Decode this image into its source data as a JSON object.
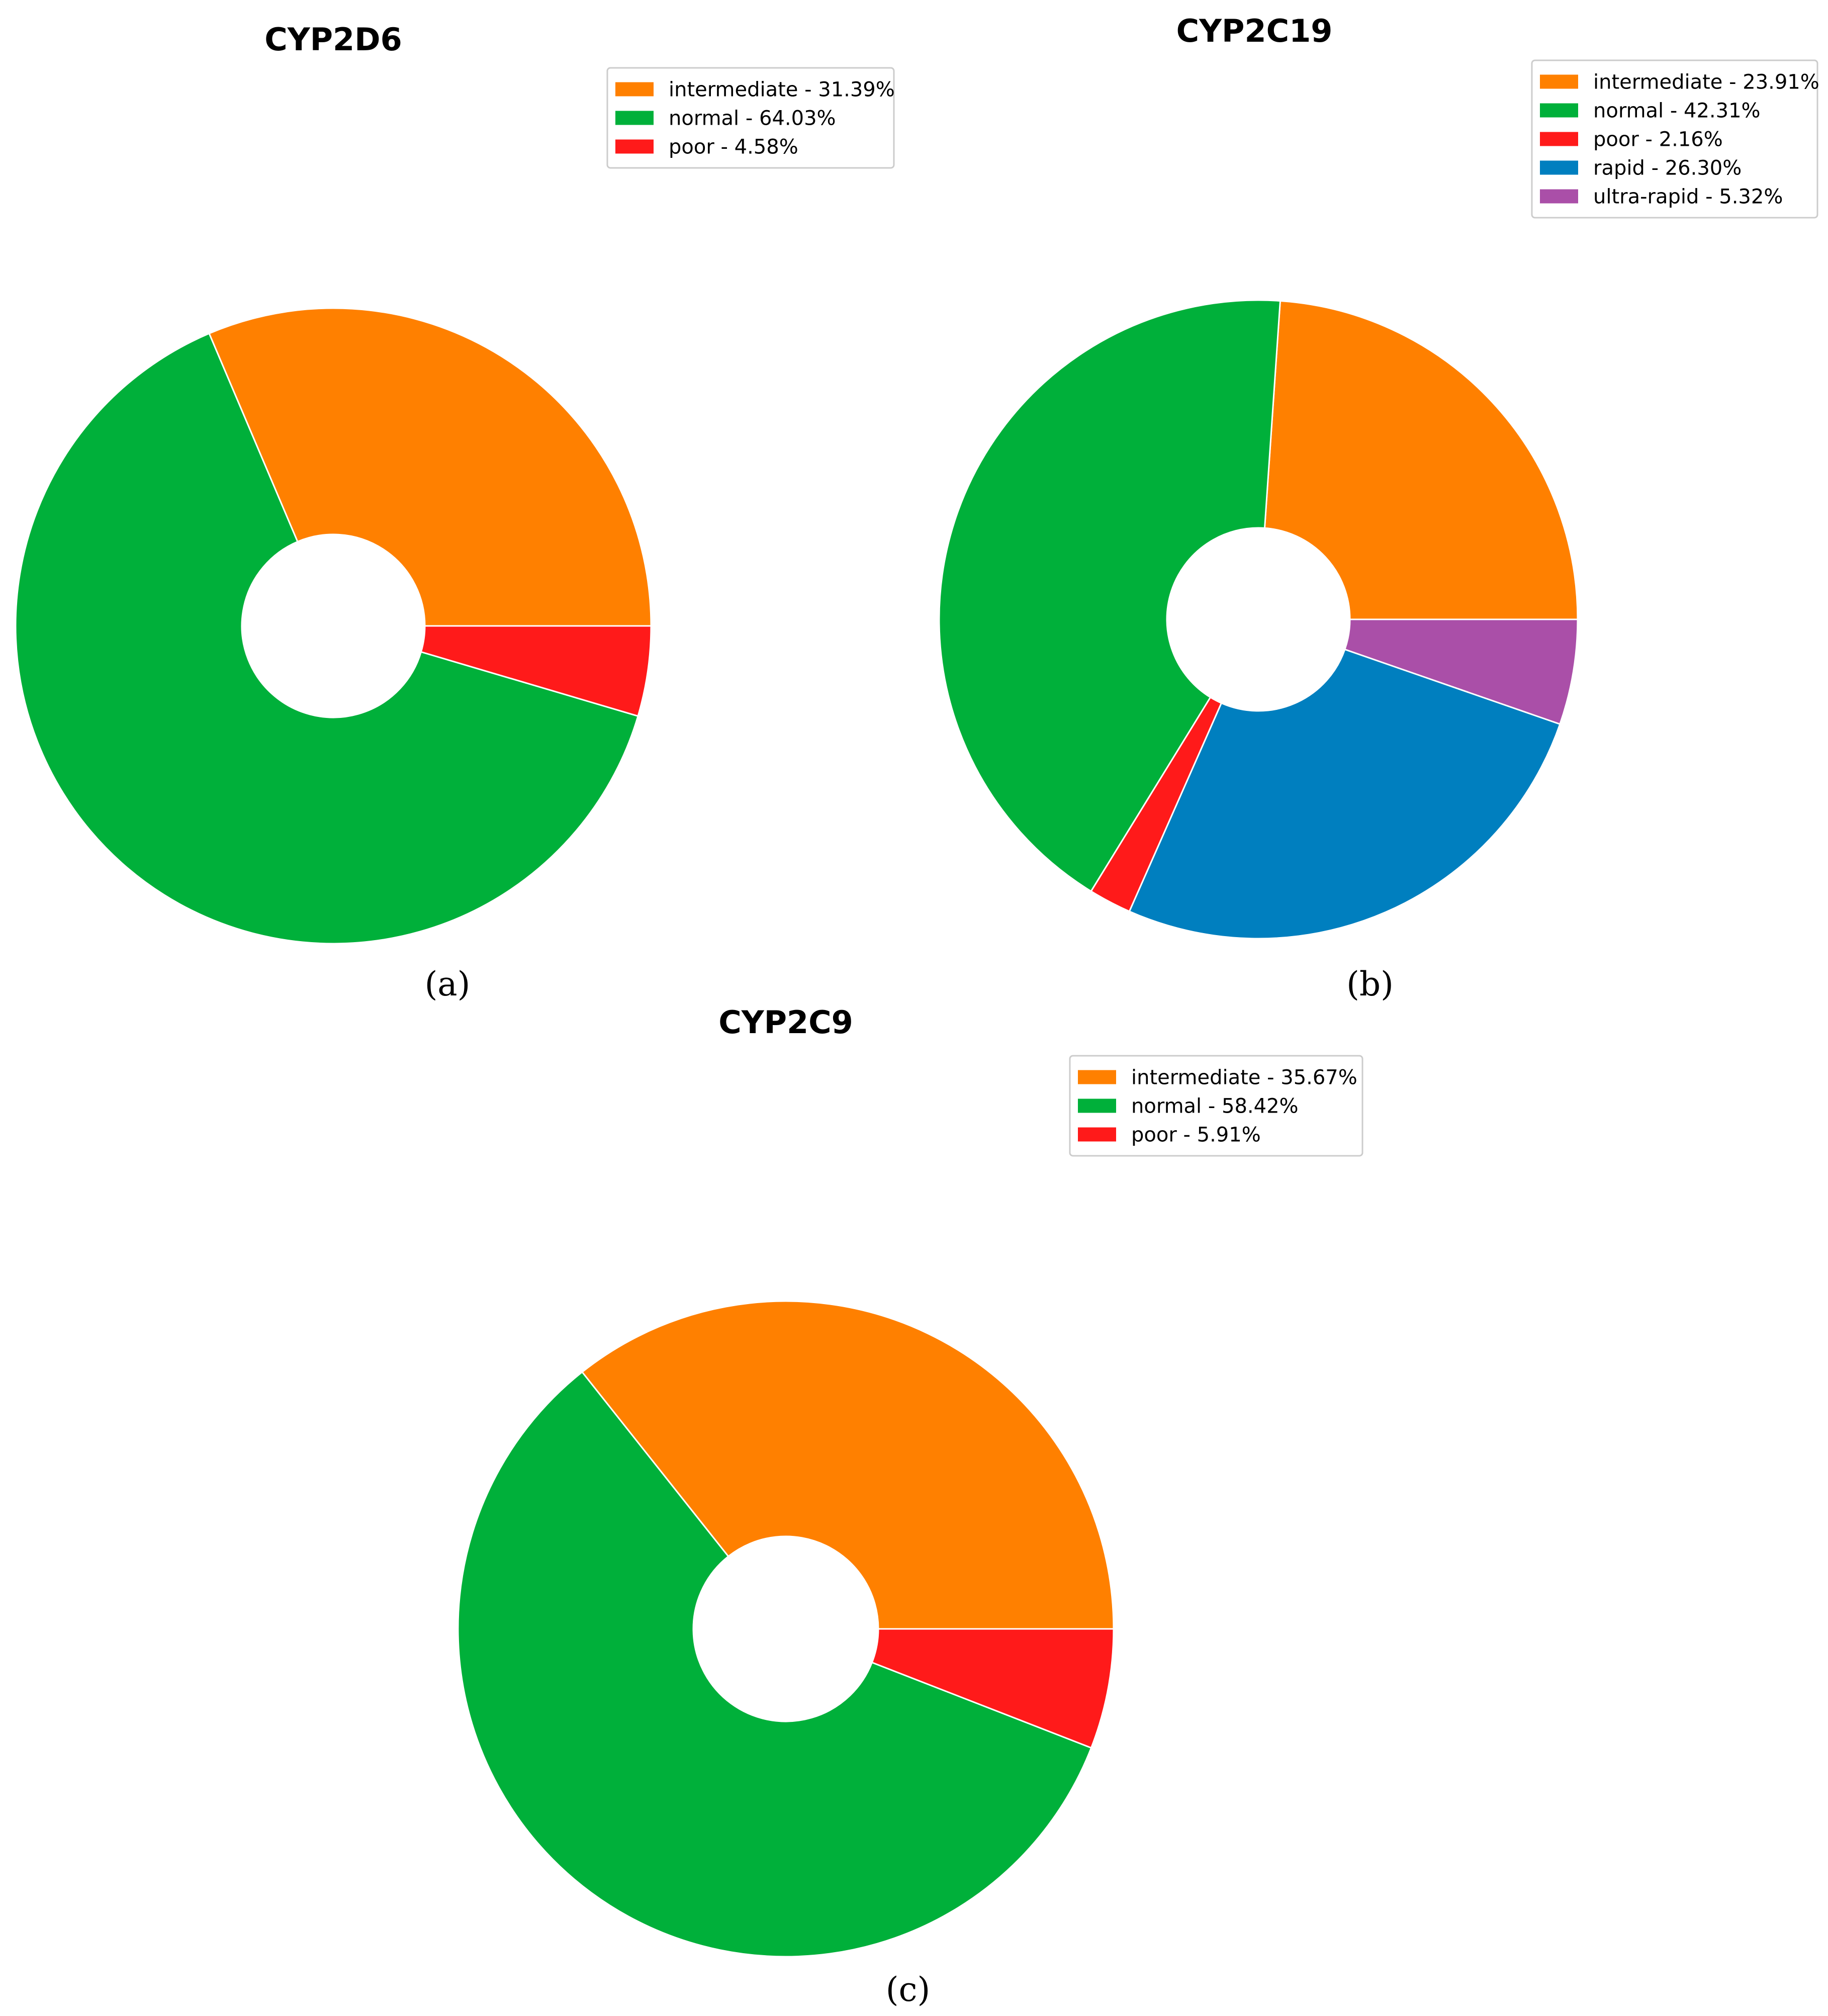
{
  "colors": {
    "intermediate": "#ff8000",
    "normal": "#00b03a",
    "poor": "#ff1a1a",
    "rapid": "#007fbf",
    "ultra-rapid": "#aa4fa8"
  },
  "chart_data": [
    {
      "type": "pie",
      "title": "CYP2D6",
      "panel_label": "(a)",
      "slices": [
        {
          "label": "intermediate",
          "value": 31.39,
          "legend": "intermediate - 31.39%"
        },
        {
          "label": "normal",
          "value": 64.03,
          "legend": "normal - 64.03%"
        },
        {
          "label": "poor",
          "value": 4.58,
          "legend": "poor - 4.58%"
        }
      ]
    },
    {
      "type": "pie",
      "title": "CYP2C19",
      "panel_label": "(b)",
      "slices": [
        {
          "label": "intermediate",
          "value": 23.91,
          "legend": "intermediate - 23.91%"
        },
        {
          "label": "normal",
          "value": 42.31,
          "legend": "normal - 42.31%"
        },
        {
          "label": "poor",
          "value": 2.16,
          "legend": "poor - 2.16%"
        },
        {
          "label": "rapid",
          "value": 26.3,
          "legend": "rapid - 26.30%"
        },
        {
          "label": "ultra-rapid",
          "value": 5.32,
          "legend": "ultra-rapid - 5.32%"
        }
      ]
    },
    {
      "type": "pie",
      "title": "CYP2C9",
      "panel_label": "(c)",
      "slices": [
        {
          "label": "intermediate",
          "value": 35.67,
          "legend": "intermediate - 35.67%"
        },
        {
          "label": "normal",
          "value": 58.42,
          "legend": "normal - 58.42%"
        },
        {
          "label": "poor",
          "value": 5.91,
          "legend": "poor - 5.91%"
        }
      ]
    }
  ]
}
